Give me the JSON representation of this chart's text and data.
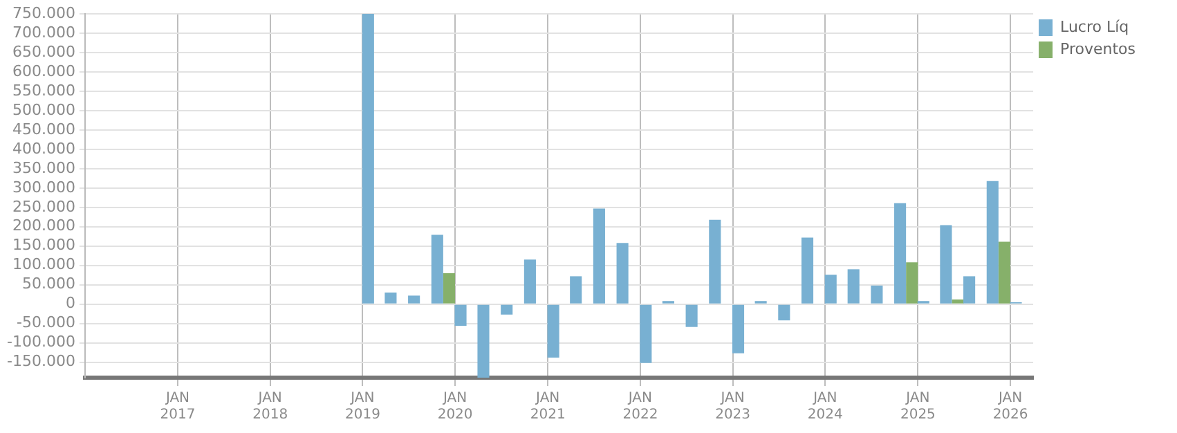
{
  "chart_data": {
    "type": "bar",
    "x": [
      "2019-02-15",
      "2019-05-15",
      "2019-08-15",
      "2019-11-15",
      "2020-02-15",
      "2020-05-15",
      "2020-08-15",
      "2020-11-15",
      "2021-02-15",
      "2021-05-15",
      "2021-08-15",
      "2021-11-15",
      "2022-02-15",
      "2022-05-15",
      "2022-08-15",
      "2022-11-15",
      "2023-02-15",
      "2023-05-15",
      "2023-08-15",
      "2023-11-15",
      "2024-02-15",
      "2024-05-15",
      "2024-08-15",
      "2024-11-15",
      "2025-02-15",
      "2025-05-15",
      "2025-08-15",
      "2025-11-15",
      "2026-02-15"
    ],
    "series": [
      {
        "name": "Lucro Líq",
        "color": "#78b0d2",
        "values": [
          750000,
          30000,
          22000,
          179000,
          -56000,
          -190000,
          -27000,
          115000,
          -138000,
          72000,
          247000,
          158000,
          -152000,
          8000,
          -59000,
          218000,
          -127000,
          8000,
          -42000,
          172000,
          76000,
          90000,
          48000,
          261000,
          8000,
          204000,
          72000,
          318000,
          5000
        ]
      },
      {
        "name": "Proventos",
        "color": "#86b06a",
        "values": [
          0,
          0,
          0,
          80000,
          0,
          0,
          0,
          0,
          0,
          0,
          0,
          0,
          0,
          0,
          0,
          0,
          0,
          0,
          0,
          0,
          0,
          0,
          0,
          108000,
          0,
          12000,
          0,
          161000,
          0
        ]
      }
    ],
    "xlim": [
      "2016-01",
      "2026-04"
    ],
    "xticks": [
      {
        "value": "2017-01",
        "label": "JAN 2017"
      },
      {
        "value": "2018-01",
        "label": "JAN 2018"
      },
      {
        "value": "2019-01",
        "label": "JAN 2019"
      },
      {
        "value": "2020-01",
        "label": "JAN 2020"
      },
      {
        "value": "2021-01",
        "label": "JAN 2021"
      },
      {
        "value": "2022-01",
        "label": "JAN 2022"
      },
      {
        "value": "2023-01",
        "label": "JAN 2023"
      },
      {
        "value": "2024-01",
        "label": "JAN 2024"
      },
      {
        "value": "2025-01",
        "label": "JAN 2025"
      },
      {
        "value": "2026-01",
        "label": "JAN 2026"
      }
    ],
    "ylim": [
      -190000,
      750000
    ],
    "yticks": [
      {
        "value": -150000,
        "label": "-150.000"
      },
      {
        "value": -100000,
        "label": "-100.000"
      },
      {
        "value": -50000,
        "label": "-50.000"
      },
      0,
      {
        "value": 50000,
        "label": "50.000"
      },
      {
        "value": 100000,
        "label": "100.000"
      },
      {
        "value": 150000,
        "label": "150.000"
      },
      {
        "value": 200000,
        "label": "200.000"
      },
      {
        "value": 250000,
        "label": "250.000"
      },
      {
        "value": 300000,
        "label": "300.000"
      },
      {
        "value": 350000,
        "label": "350.000"
      },
      {
        "value": 400000,
        "label": "400.000"
      },
      {
        "value": 450000,
        "label": "450.000"
      },
      {
        "value": 500000,
        "label": "500.000"
      },
      {
        "value": 550000,
        "label": "550.000"
      },
      {
        "value": 600000,
        "label": "600.000"
      },
      {
        "value": 650000,
        "label": "650.000"
      },
      {
        "value": 700000,
        "label": "700.000"
      },
      {
        "value": 750000,
        "label": "750.000"
      }
    ],
    "grid": true,
    "legend": "top right"
  }
}
